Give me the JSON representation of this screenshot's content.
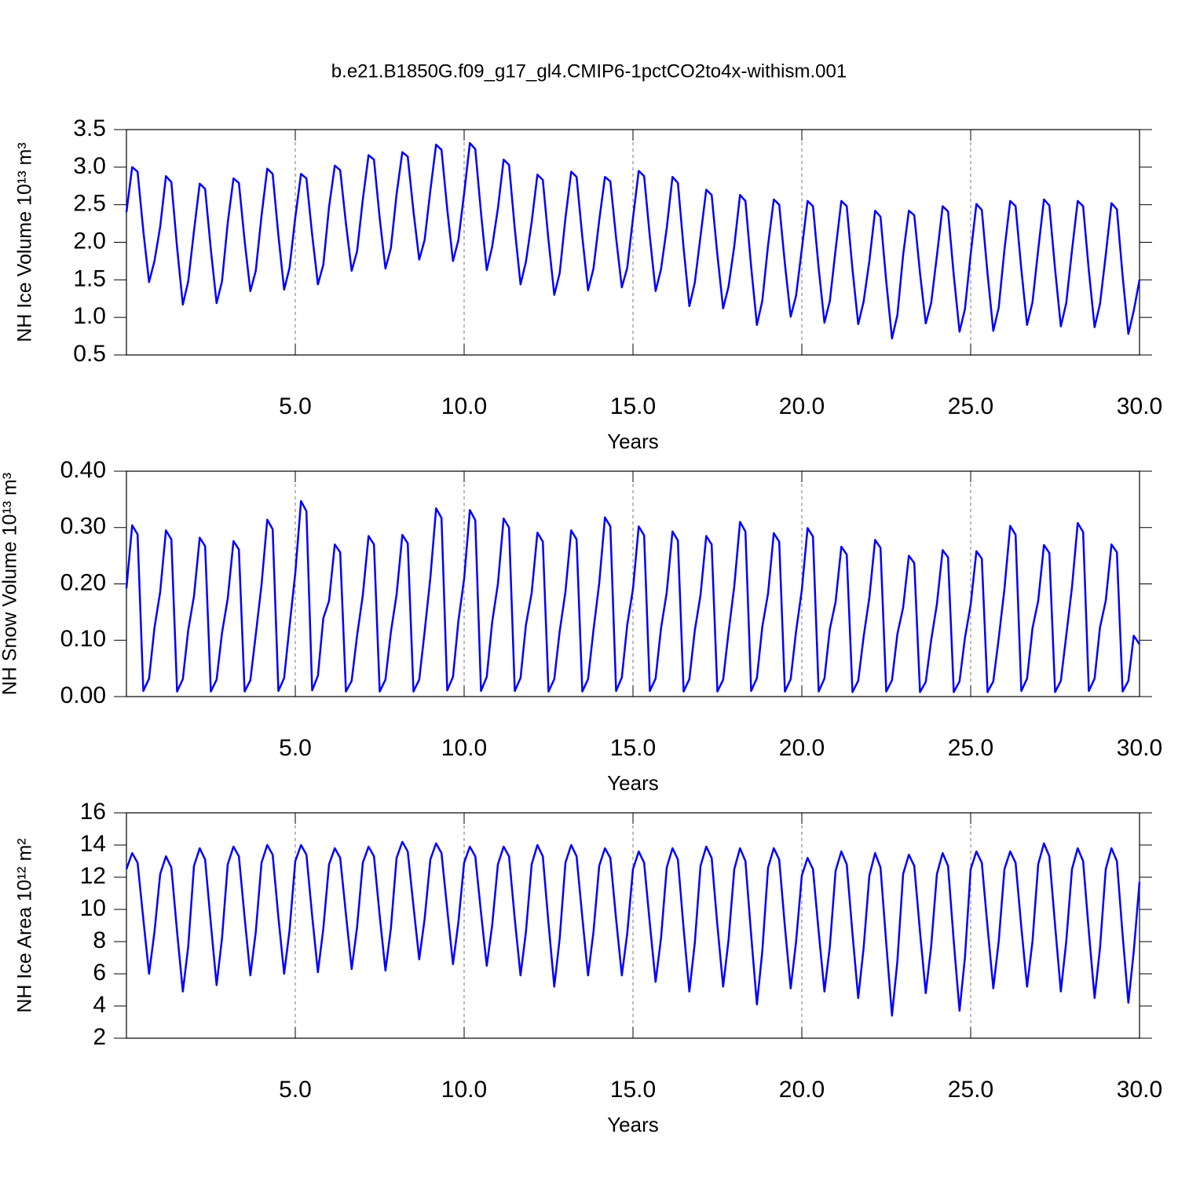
{
  "title": "b.e21.B1850G.f09_g17_gl4.CMIP6-1pctCO2to4x-withism.001",
  "chart_data": [
    {
      "type": "line",
      "ylabel": "NH Ice Volume 10¹³ m³",
      "xlabel": "Years",
      "color": "#0000ff",
      "xgrid": true,
      "xlim": [
        0,
        30
      ],
      "ylim": [
        0.5,
        3.5
      ],
      "xticks": [
        {
          "value": 5,
          "label": "5.0"
        },
        {
          "value": 10,
          "label": "10.0"
        },
        {
          "value": 15,
          "label": "15.0"
        },
        {
          "value": 20,
          "label": "20.0"
        },
        {
          "value": 25,
          "label": "25.0"
        },
        {
          "value": 30,
          "label": "30.0"
        }
      ],
      "yticks": [
        0.5,
        {
          "value": 1,
          "label": "1.0"
        },
        1.5,
        {
          "value": 2,
          "label": "2.0"
        },
        2.5,
        {
          "value": 3,
          "label": "3.0"
        },
        3.5
      ],
      "x": [
        0,
        0.17,
        0.33,
        0.5,
        0.67,
        0.83,
        1,
        1.17,
        1.33,
        1.5,
        1.67,
        1.83,
        2,
        2.17,
        2.33,
        2.5,
        2.67,
        2.83,
        3,
        3.17,
        3.33,
        3.5,
        3.67,
        3.83,
        4,
        4.17,
        4.33,
        4.5,
        4.67,
        4.83,
        5,
        5.17,
        5.33,
        5.5,
        5.67,
        5.83,
        6,
        6.17,
        6.33,
        6.5,
        6.67,
        6.83,
        7,
        7.17,
        7.33,
        7.5,
        7.67,
        7.83,
        8,
        8.17,
        8.33,
        8.5,
        8.67,
        8.83,
        9,
        9.17,
        9.33,
        9.5,
        9.67,
        9.83,
        10,
        10.17,
        10.33,
        10.5,
        10.67,
        10.83,
        11,
        11.17,
        11.33,
        11.5,
        11.67,
        11.83,
        12,
        12.17,
        12.33,
        12.5,
        12.67,
        12.83,
        13,
        13.17,
        13.33,
        13.5,
        13.67,
        13.83,
        14,
        14.17,
        14.33,
        14.5,
        14.67,
        14.83,
        15,
        15.17,
        15.33,
        15.5,
        15.67,
        15.83,
        16,
        16.17,
        16.33,
        16.5,
        16.67,
        16.83,
        17,
        17.17,
        17.33,
        17.5,
        17.67,
        17.83,
        18,
        18.17,
        18.33,
        18.5,
        18.67,
        18.83,
        19,
        19.17,
        19.33,
        19.5,
        19.67,
        19.83,
        20,
        20.17,
        20.33,
        20.5,
        20.67,
        20.83,
        21,
        21.17,
        21.33,
        21.5,
        21.67,
        21.83,
        22,
        22.17,
        22.33,
        22.5,
        22.67,
        22.83,
        23,
        23.17,
        23.33,
        23.5,
        23.67,
        23.83,
        24,
        24.17,
        24.33,
        24.5,
        24.67,
        24.83,
        25,
        25.17,
        25.33,
        25.5,
        25.67,
        25.83,
        26,
        26.17,
        26.33,
        26.5,
        26.67,
        26.83,
        27,
        27.17,
        27.33,
        27.5,
        27.67,
        27.83,
        28,
        28.17,
        28.33,
        28.5,
        28.67,
        28.83,
        29,
        29.17,
        29.33,
        29.5,
        29.67,
        29.83,
        30
      ],
      "values": [
        2.4,
        3.0,
        2.94,
        2.15,
        1.47,
        1.75,
        2.21,
        2.88,
        2.8,
        1.93,
        1.17,
        1.48,
        2.15,
        2.78,
        2.71,
        1.9,
        1.19,
        1.48,
        2.26,
        2.85,
        2.79,
        2.02,
        1.35,
        1.62,
        2.35,
        2.98,
        2.91,
        2.09,
        1.37,
        1.66,
        2.33,
        2.91,
        2.85,
        2.1,
        1.44,
        1.7,
        2.47,
        3.02,
        2.96,
        2.25,
        1.62,
        1.88,
        2.57,
        3.16,
        3.1,
        2.32,
        1.65,
        1.92,
        2.64,
        3.2,
        3.14,
        2.41,
        1.77,
        2.03,
        2.69,
        3.3,
        3.23,
        2.44,
        1.75,
        2.03,
        2.65,
        3.32,
        3.24,
        2.39,
        1.63,
        1.94,
        2.45,
        3.1,
        3.03,
        2.18,
        1.44,
        1.74,
        2.27,
        2.9,
        2.83,
        2.02,
        1.3,
        1.59,
        2.32,
        2.94,
        2.87,
        2.07,
        1.36,
        1.65,
        2.29,
        2.87,
        2.81,
        2.06,
        1.4,
        1.66,
        2.32,
        2.95,
        2.88,
        2.07,
        1.35,
        1.64,
        2.19,
        2.87,
        2.79,
        1.92,
        1.15,
        1.46,
        2.08,
        2.7,
        2.63,
        1.83,
        1.12,
        1.41,
        1.95,
        2.63,
        2.55,
        1.67,
        0.9,
        1.22,
        1.96,
        2.57,
        2.5,
        1.71,
        1.01,
        1.29,
        1.91,
        2.55,
        2.48,
        1.65,
        0.93,
        1.22,
        1.9,
        2.55,
        2.48,
        1.64,
        0.91,
        1.21,
        1.75,
        2.42,
        2.34,
        1.48,
        0.72,
        1.03,
        1.83,
        2.42,
        2.36,
        1.59,
        0.92,
        1.19,
        1.82,
        2.48,
        2.41,
        1.56,
        0.81,
        1.11,
        1.84,
        2.51,
        2.43,
        1.58,
        0.82,
        1.13,
        1.9,
        2.55,
        2.48,
        1.64,
        0.9,
        1.2,
        1.9,
        2.57,
        2.49,
        1.64,
        0.88,
        1.19,
        1.89,
        2.55,
        2.48,
        1.62,
        0.87,
        1.18,
        1.83,
        2.52,
        2.44,
        1.55,
        0.78,
        1.09,
        1.5
      ]
    },
    {
      "type": "line",
      "ylabel": "NH Snow Volume 10¹³ m³",
      "xlabel": "Years",
      "color": "#0000ff",
      "xgrid": true,
      "xlim": [
        0,
        30
      ],
      "ylim": [
        0,
        0.4
      ],
      "xticks": [
        {
          "value": 5,
          "label": "5.0"
        },
        {
          "value": 10,
          "label": "10.0"
        },
        {
          "value": 15,
          "label": "15.0"
        },
        {
          "value": 20,
          "label": "20.0"
        },
        {
          "value": 25,
          "label": "25.0"
        },
        {
          "value": 30,
          "label": "30.0"
        }
      ],
      "yticks": [
        {
          "value": 0,
          "label": "0.00"
        },
        {
          "value": 0.1,
          "label": "0.10"
        },
        {
          "value": 0.2,
          "label": "0.20"
        },
        {
          "value": 0.3,
          "label": "0.30"
        },
        {
          "value": 0.4,
          "label": "0.40"
        }
      ],
      "x": [
        0,
        0.17,
        0.33,
        0.5,
        0.67,
        0.83,
        1,
        1.17,
        1.33,
        1.5,
        1.67,
        1.83,
        2,
        2.17,
        2.33,
        2.5,
        2.67,
        2.83,
        3,
        3.17,
        3.33,
        3.5,
        3.67,
        3.83,
        4,
        4.17,
        4.33,
        4.5,
        4.67,
        4.83,
        5,
        5.17,
        5.33,
        5.5,
        5.67,
        5.83,
        6,
        6.17,
        6.33,
        6.5,
        6.67,
        6.83,
        7,
        7.17,
        7.33,
        7.5,
        7.67,
        7.83,
        8,
        8.17,
        8.33,
        8.5,
        8.67,
        8.83,
        9,
        9.17,
        9.33,
        9.5,
        9.67,
        9.83,
        10,
        10.17,
        10.33,
        10.5,
        10.67,
        10.83,
        11,
        11.17,
        11.33,
        11.5,
        11.67,
        11.83,
        12,
        12.17,
        12.33,
        12.5,
        12.67,
        12.83,
        13,
        13.17,
        13.33,
        13.5,
        13.67,
        13.83,
        14,
        14.17,
        14.33,
        14.5,
        14.67,
        14.83,
        15,
        15.17,
        15.33,
        15.5,
        15.67,
        15.83,
        16,
        16.17,
        16.33,
        16.5,
        16.67,
        16.83,
        17,
        17.17,
        17.33,
        17.5,
        17.67,
        17.83,
        18,
        18.17,
        18.33,
        18.5,
        18.67,
        18.83,
        19,
        19.17,
        19.33,
        19.5,
        19.67,
        19.83,
        20,
        20.17,
        20.33,
        20.5,
        20.67,
        20.83,
        21,
        21.17,
        21.33,
        21.5,
        21.67,
        21.83,
        22,
        22.17,
        22.33,
        22.5,
        22.67,
        22.83,
        23,
        23.17,
        23.33,
        23.5,
        23.67,
        23.83,
        24,
        24.17,
        24.33,
        24.5,
        24.67,
        24.83,
        25,
        25.17,
        25.33,
        25.5,
        25.67,
        25.83,
        26,
        26.17,
        26.33,
        26.5,
        26.67,
        26.83,
        27,
        27.17,
        27.33,
        27.5,
        27.67,
        27.83,
        28,
        28.17,
        28.33,
        28.5,
        28.67,
        28.83,
        29,
        29.17,
        29.33,
        29.5,
        29.67,
        29.83,
        30
      ],
      "values": [
        0.192,
        0.304,
        0.288,
        0.01,
        0.032,
        0.122,
        0.186,
        0.295,
        0.279,
        0.009,
        0.031,
        0.118,
        0.178,
        0.282,
        0.267,
        0.009,
        0.03,
        0.113,
        0.174,
        0.276,
        0.261,
        0.009,
        0.029,
        0.11,
        0.198,
        0.314,
        0.297,
        0.01,
        0.033,
        0.125,
        0.219,
        0.347,
        0.329,
        0.011,
        0.037,
        0.139,
        0.17,
        0.27,
        0.256,
        0.009,
        0.028,
        0.108,
        0.18,
        0.285,
        0.27,
        0.009,
        0.03,
        0.114,
        0.181,
        0.287,
        0.272,
        0.009,
        0.03,
        0.115,
        0.211,
        0.334,
        0.317,
        0.011,
        0.035,
        0.134,
        0.209,
        0.331,
        0.313,
        0.01,
        0.035,
        0.132,
        0.2,
        0.316,
        0.3,
        0.01,
        0.033,
        0.127,
        0.184,
        0.291,
        0.275,
        0.009,
        0.031,
        0.116,
        0.186,
        0.295,
        0.279,
        0.009,
        0.031,
        0.118,
        0.201,
        0.318,
        0.302,
        0.01,
        0.034,
        0.127,
        0.191,
        0.302,
        0.286,
        0.01,
        0.032,
        0.121,
        0.185,
        0.293,
        0.277,
        0.009,
        0.031,
        0.117,
        0.18,
        0.285,
        0.27,
        0.009,
        0.03,
        0.114,
        0.196,
        0.31,
        0.293,
        0.01,
        0.033,
        0.124,
        0.183,
        0.29,
        0.275,
        0.009,
        0.031,
        0.116,
        0.189,
        0.299,
        0.284,
        0.009,
        0.032,
        0.12,
        0.168,
        0.266,
        0.252,
        0.008,
        0.028,
        0.106,
        0.176,
        0.278,
        0.264,
        0.009,
        0.029,
        0.111,
        0.158,
        0.25,
        0.237,
        0.008,
        0.026,
        0.1,
        0.164,
        0.26,
        0.247,
        0.008,
        0.027,
        0.104,
        0.163,
        0.258,
        0.245,
        0.008,
        0.027,
        0.103,
        0.191,
        0.303,
        0.287,
        0.01,
        0.032,
        0.121,
        0.17,
        0.269,
        0.255,
        0.008,
        0.028,
        0.108,
        0.194,
        0.308,
        0.292,
        0.01,
        0.032,
        0.123,
        0.17,
        0.27,
        0.256,
        0.009,
        0.028,
        0.108,
        0.093
      ]
    },
    {
      "type": "line",
      "ylabel": "NH Ice Area 10¹² m²",
      "xlabel": "Years",
      "color": "#0000ff",
      "xgrid": true,
      "xlim": [
        0,
        30
      ],
      "ylim": [
        2,
        16
      ],
      "xticks": [
        {
          "value": 5,
          "label": "5.0"
        },
        {
          "value": 10,
          "label": "10.0"
        },
        {
          "value": 15,
          "label": "15.0"
        },
        {
          "value": 20,
          "label": "20.0"
        },
        {
          "value": 25,
          "label": "25.0"
        },
        {
          "value": 30,
          "label": "30.0"
        }
      ],
      "yticks": [
        2,
        4,
        6,
        8,
        10,
        12,
        14,
        16
      ],
      "x": [
        0,
        0.17,
        0.33,
        0.5,
        0.67,
        0.83,
        1,
        1.17,
        1.33,
        1.5,
        1.67,
        1.83,
        2,
        2.17,
        2.33,
        2.5,
        2.67,
        2.83,
        3,
        3.17,
        3.33,
        3.5,
        3.67,
        3.83,
        4,
        4.17,
        4.33,
        4.5,
        4.67,
        4.83,
        5,
        5.17,
        5.33,
        5.5,
        5.67,
        5.83,
        6,
        6.17,
        6.33,
        6.5,
        6.67,
        6.83,
        7,
        7.17,
        7.33,
        7.5,
        7.67,
        7.83,
        8,
        8.17,
        8.33,
        8.5,
        8.67,
        8.83,
        9,
        9.17,
        9.33,
        9.5,
        9.67,
        9.83,
        10,
        10.17,
        10.33,
        10.5,
        10.67,
        10.83,
        11,
        11.17,
        11.33,
        11.5,
        11.67,
        11.83,
        12,
        12.17,
        12.33,
        12.5,
        12.67,
        12.83,
        13,
        13.17,
        13.33,
        13.5,
        13.67,
        13.83,
        14,
        14.17,
        14.33,
        14.5,
        14.67,
        14.83,
        15,
        15.17,
        15.33,
        15.5,
        15.67,
        15.83,
        16,
        16.17,
        16.33,
        16.5,
        16.67,
        16.83,
        17,
        17.17,
        17.33,
        17.5,
        17.67,
        17.83,
        18,
        18.17,
        18.33,
        18.5,
        18.67,
        18.83,
        19,
        19.17,
        19.33,
        19.5,
        19.67,
        19.83,
        20,
        20.17,
        20.33,
        20.5,
        20.67,
        20.83,
        21,
        21.17,
        21.33,
        21.5,
        21.67,
        21.83,
        22,
        22.17,
        22.33,
        22.5,
        22.67,
        22.83,
        23,
        23.17,
        23.33,
        23.5,
        23.67,
        23.83,
        24,
        24.17,
        24.33,
        24.5,
        24.67,
        24.83,
        25,
        25.17,
        25.33,
        25.5,
        25.67,
        25.83,
        26,
        26.17,
        26.33,
        26.5,
        26.67,
        26.83,
        27,
        27.17,
        27.33,
        27.5,
        27.67,
        27.83,
        28,
        28.17,
        28.33,
        28.5,
        28.67,
        28.83,
        29,
        29.17,
        29.33,
        29.5,
        29.67,
        29.83,
        30
      ],
      "values": [
        12.5,
        13.5,
        12.9,
        9.4,
        6.0,
        8.6,
        12.2,
        13.3,
        12.6,
        8.6,
        4.9,
        7.7,
        12.7,
        13.8,
        13.1,
        9.1,
        5.3,
        8.2,
        12.8,
        13.9,
        13.3,
        9.5,
        5.9,
        8.6,
        12.9,
        14.0,
        13.4,
        9.5,
        6.0,
        8.7,
        13.0,
        14.0,
        13.4,
        9.6,
        6.1,
        8.8,
        12.8,
        13.8,
        13.2,
        9.7,
        6.3,
        8.9,
        12.9,
        13.9,
        13.3,
        9.6,
        6.2,
        8.8,
        13.2,
        14.2,
        13.6,
        10.2,
        6.9,
        9.4,
        13.1,
        14.1,
        13.5,
        10.0,
        6.6,
        9.2,
        12.9,
        13.9,
        13.3,
        9.8,
        6.5,
        9.0,
        12.8,
        13.9,
        13.3,
        9.4,
        5.9,
        8.6,
        12.8,
        14.0,
        13.3,
        9.1,
        5.2,
        8.2,
        12.9,
        14.0,
        13.3,
        9.5,
        5.9,
        8.6,
        12.7,
        13.8,
        13.2,
        9.4,
        5.9,
        8.5,
        12.5,
        13.6,
        12.9,
        9.1,
        5.5,
        8.2,
        12.6,
        13.8,
        13.1,
        8.8,
        4.9,
        7.9,
        12.7,
        13.9,
        13.2,
        9.0,
        5.2,
        8.1,
        12.5,
        13.8,
        13.0,
        8.4,
        4.1,
        7.4,
        12.6,
        13.8,
        13.1,
        8.9,
        5.1,
        8.0,
        12.1,
        13.2,
        12.5,
        8.6,
        4.9,
        7.7,
        12.4,
        13.6,
        12.8,
        8.5,
        4.5,
        7.6,
        12.1,
        13.5,
        12.6,
        7.9,
        3.4,
        6.8,
        12.2,
        13.4,
        12.7,
        8.6,
        4.8,
        7.7,
        12.2,
        13.5,
        12.7,
        8.0,
        3.7,
        7.0,
        12.5,
        13.6,
        12.9,
        8.9,
        5.1,
        8.0,
        12.5,
        13.6,
        12.9,
        8.9,
        5.2,
        8.0,
        12.8,
        14.1,
        13.3,
        9.0,
        4.9,
        8.0,
        12.5,
        13.8,
        13.0,
        8.6,
        4.5,
        7.6,
        12.5,
        13.8,
        13.0,
        8.4,
        4.2,
        7.4,
        11.7
      ]
    }
  ]
}
